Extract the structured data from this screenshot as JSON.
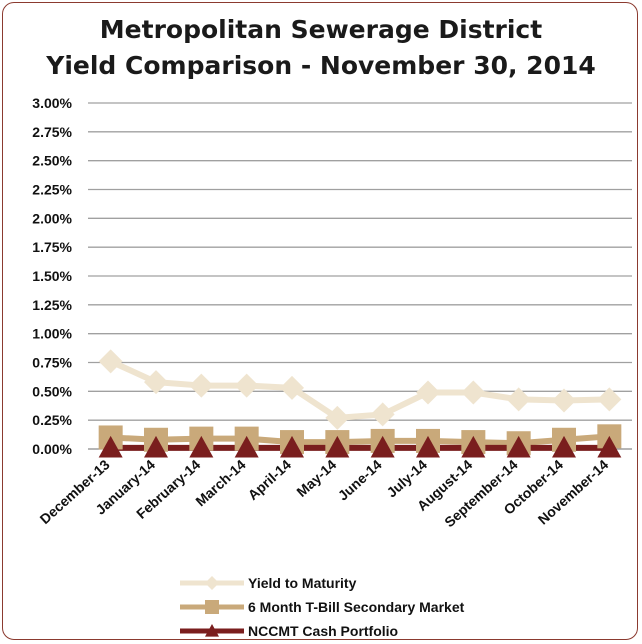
{
  "chart_data": {
    "type": "line",
    "title_line1": "Metropolitan Sewerage District",
    "title_line2": "Yield Comparison - November 30, 2014",
    "categories": [
      "December-13",
      "January-14",
      "February-14",
      "March-14",
      "April-14",
      "May-14",
      "June-14",
      "July-14",
      "August-14",
      "September-14",
      "October-14",
      "November-14"
    ],
    "y_ticks": [
      "0.00%",
      "0.25%",
      "0.50%",
      "0.75%",
      "1.00%",
      "1.25%",
      "1.50%",
      "1.75%",
      "2.00%",
      "2.25%",
      "2.50%",
      "2.75%",
      "3.00%"
    ],
    "ylim": [
      0,
      3.0
    ],
    "grid": true,
    "legend_position": "bottom",
    "series": [
      {
        "name": "Yield to Maturity",
        "color": "#efe4cf",
        "marker": "diamond",
        "values": [
          0.76,
          0.58,
          0.55,
          0.55,
          0.53,
          0.27,
          0.3,
          0.49,
          0.49,
          0.43,
          0.42,
          0.43
        ]
      },
      {
        "name": "6 Month T-Bill Secondary Market",
        "color": "#c9a97a",
        "marker": "square",
        "values": [
          0.1,
          0.08,
          0.09,
          0.09,
          0.06,
          0.06,
          0.07,
          0.07,
          0.06,
          0.05,
          0.08,
          0.11
        ]
      },
      {
        "name": "NCCMT Cash Portfolio",
        "color": "#7a1e1e",
        "marker": "triangle",
        "values": [
          0.01,
          0.01,
          0.01,
          0.01,
          0.01,
          0.01,
          0.01,
          0.01,
          0.01,
          0.01,
          0.01,
          0.01
        ]
      }
    ]
  }
}
